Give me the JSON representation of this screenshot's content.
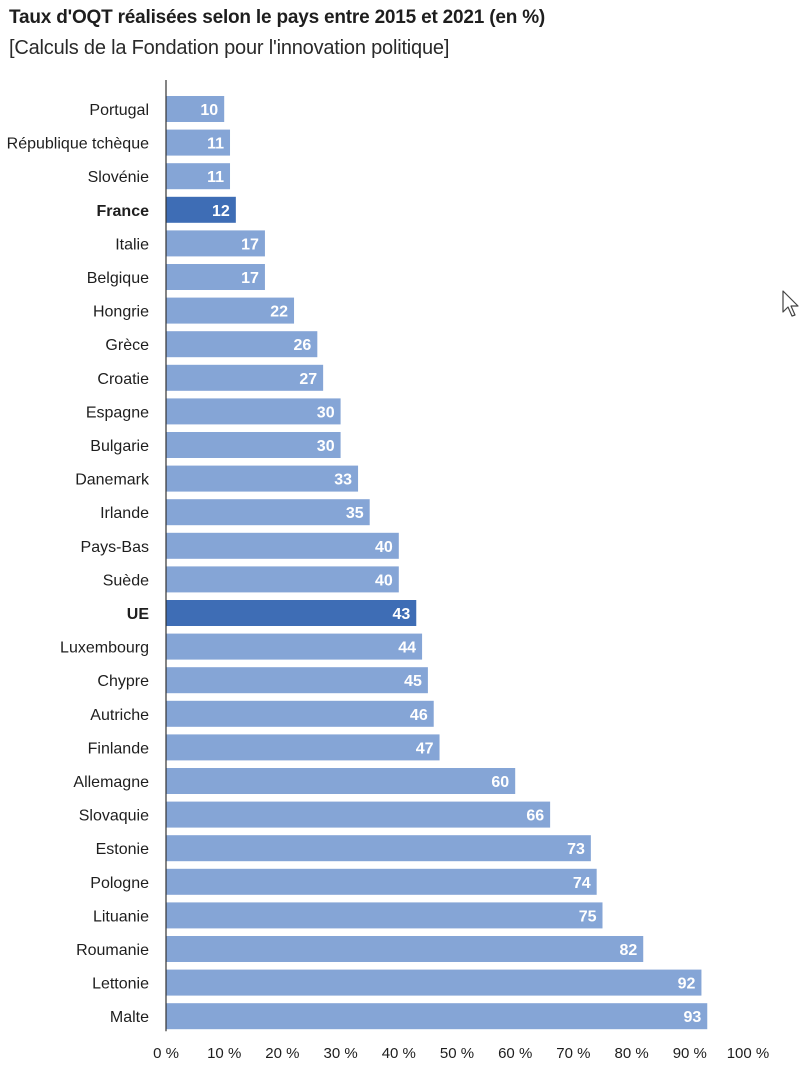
{
  "title": "Taux d'OQT réalisées selon le pays entre 2015 et 2021 (en %)",
  "subtitle": "[Calculs de la Fondation pour l'innovation politique]",
  "colors": {
    "bar": "#85a5d6",
    "highlight": "#3e6db5",
    "value_text": "#ffffff",
    "axis": "#333333"
  },
  "chart_data": {
    "type": "bar",
    "orientation": "horizontal",
    "title": "Taux d'OQT réalisées selon le pays entre 2015 et 2021 (en %)",
    "subtitle": "[Calculs de la Fondation pour l'innovation politique]",
    "categories": [
      "Portugal",
      "République tchèque",
      "Slovénie",
      "France",
      "Italie",
      "Belgique",
      "Hongrie",
      "Grèce",
      "Croatie",
      "Espagne",
      "Bulgarie",
      "Danemark",
      "Irlande",
      "Pays-Bas",
      "Suède",
      "UE",
      "Luxembourg",
      "Chypre",
      "Autriche",
      "Finlande",
      "Allemagne",
      "Slovaquie",
      "Estonie",
      "Pologne",
      "Lituanie",
      "Roumanie",
      "Lettonie",
      "Malte"
    ],
    "values": [
      10,
      11,
      11,
      12,
      17,
      17,
      22,
      26,
      27,
      30,
      30,
      33,
      35,
      40,
      40,
      43,
      44,
      45,
      46,
      47,
      60,
      66,
      73,
      74,
      75,
      82,
      92,
      93
    ],
    "highlighted": [
      "France",
      "UE"
    ],
    "xlim": [
      0,
      100
    ],
    "x_ticks": [
      0,
      10,
      20,
      30,
      40,
      50,
      60,
      70,
      80,
      90,
      100
    ],
    "x_tick_labels": [
      "0 %",
      "10 %",
      "20 %",
      "30 %",
      "40 %",
      "50 %",
      "60 %",
      "70 %",
      "80 %",
      "90 %",
      "100 %"
    ],
    "xlabel": "",
    "ylabel": "",
    "grid": false,
    "legend": "none"
  }
}
